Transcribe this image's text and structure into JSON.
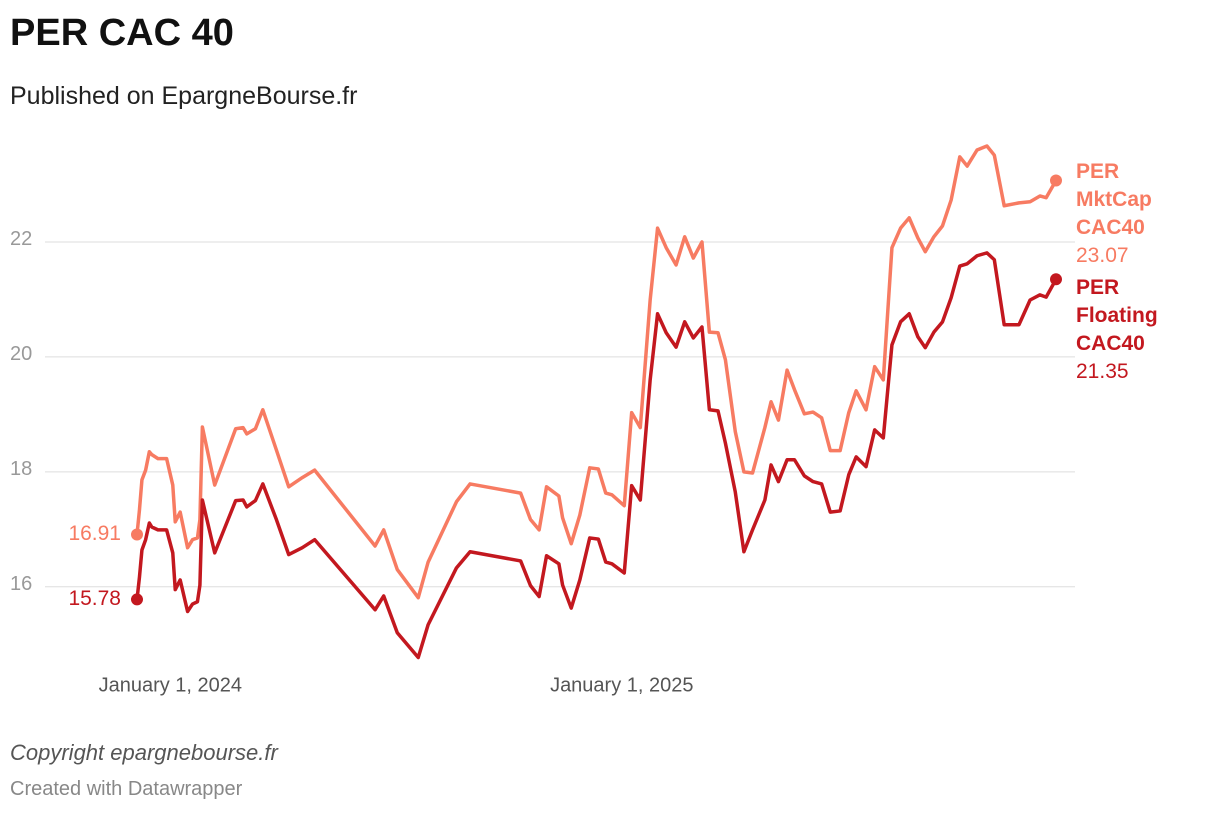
{
  "chart_data": {
    "type": "line",
    "title": "PER CAC 40",
    "subtitle": "Published on EpargneBourse.fr",
    "footer": "Copyright epargnebourse.fr",
    "credit": "Created with Datawrapper",
    "x": [
      "2023-12-05",
      "2023-12-07",
      "2023-12-09",
      "2023-12-12",
      "2023-12-15",
      "2023-12-17",
      "2023-12-22",
      "2023-12-29",
      "2024-01-03",
      "2024-01-05",
      "2024-01-09",
      "2024-01-15",
      "2024-01-19",
      "2024-01-23",
      "2024-01-25",
      "2024-01-27",
      "2024-02-06",
      "2024-02-23",
      "2024-02-29",
      "2024-03-03",
      "2024-03-10",
      "2024-03-16",
      "2024-03-27",
      "2024-04-06",
      "2024-04-17",
      "2024-04-27",
      "2024-06-15",
      "2024-06-22",
      "2024-07-03",
      "2024-07-20",
      "2024-07-28",
      "2024-08-20",
      "2024-08-31",
      "2024-10-11",
      "2024-10-19",
      "2024-10-26",
      "2024-11-01",
      "2024-11-11",
      "2024-11-14",
      "2024-11-21",
      "2024-11-28",
      "2024-12-06",
      "2024-12-13",
      "2024-12-19",
      "2024-12-24",
      "2025-01-03",
      "2025-01-09",
      "2025-01-16",
      "2025-01-24",
      "2025-01-30",
      "2025-02-06",
      "2025-02-14",
      "2025-02-21",
      "2025-02-28",
      "2025-03-07",
      "2025-03-13",
      "2025-03-20",
      "2025-03-26",
      "2025-04-03",
      "2025-04-10",
      "2025-04-17",
      "2025-04-27",
      "2025-05-02",
      "2025-05-08",
      "2025-05-15",
      "2025-05-21",
      "2025-05-29",
      "2025-06-05",
      "2025-06-12",
      "2025-06-19",
      "2025-06-27",
      "2025-07-04",
      "2025-07-10",
      "2025-07-18",
      "2025-07-25",
      "2025-08-01",
      "2025-08-08",
      "2025-08-15",
      "2025-08-22",
      "2025-08-29",
      "2025-09-04",
      "2025-09-11",
      "2025-09-18",
      "2025-09-25",
      "2025-10-02",
      "2025-10-08",
      "2025-10-16",
      "2025-10-24",
      "2025-10-30",
      "2025-11-07",
      "2025-11-19",
      "2025-11-28",
      "2025-12-06",
      "2025-12-11",
      "2025-12-19"
    ],
    "series": [
      {
        "name": "PER MktCap CAC40",
        "color": "#f77b62",
        "values": [
          16.91,
          17.34,
          17.86,
          18.03,
          18.35,
          18.3,
          18.23,
          18.23,
          17.77,
          17.13,
          17.3,
          16.68,
          16.82,
          16.85,
          17.17,
          18.78,
          17.77,
          18.75,
          18.77,
          18.66,
          18.75,
          19.08,
          18.38,
          17.74,
          17.9,
          18.03,
          16.71,
          16.99,
          16.3,
          15.81,
          16.43,
          17.48,
          17.79,
          17.63,
          17.17,
          16.99,
          17.74,
          17.58,
          17.2,
          16.75,
          17.25,
          18.07,
          18.05,
          17.63,
          17.6,
          17.41,
          19.03,
          18.77,
          20.99,
          22.24,
          21.9,
          21.6,
          22.09,
          21.72,
          22.0,
          20.43,
          20.42,
          19.95,
          18.7,
          18.0,
          17.98,
          18.77,
          19.22,
          18.9,
          19.77,
          19.43,
          19.01,
          19.04,
          18.94,
          18.37,
          18.37,
          19.03,
          19.41,
          19.08,
          19.83,
          19.6,
          21.9,
          22.24,
          22.42,
          22.07,
          21.83,
          22.09,
          22.28,
          22.73,
          23.48,
          23.32,
          23.6,
          23.67,
          23.51,
          22.63,
          22.68,
          22.7,
          22.8,
          22.77,
          23.07
        ]
      },
      {
        "name": "PER Floating CAC40",
        "color": "#c3181f",
        "values": [
          15.78,
          16.17,
          16.64,
          16.82,
          17.11,
          17.04,
          16.99,
          16.99,
          16.59,
          15.95,
          16.12,
          15.57,
          15.7,
          15.74,
          16.03,
          17.51,
          16.59,
          17.5,
          17.51,
          17.39,
          17.5,
          17.79,
          17.17,
          16.56,
          16.68,
          16.82,
          15.6,
          15.84,
          15.2,
          14.77,
          15.34,
          16.33,
          16.61,
          16.45,
          16.02,
          15.83,
          16.54,
          16.4,
          16.03,
          15.63,
          16.12,
          16.85,
          16.83,
          16.43,
          16.4,
          16.24,
          17.76,
          17.51,
          19.6,
          20.75,
          20.42,
          20.17,
          20.61,
          20.33,
          20.52,
          19.08,
          19.06,
          18.5,
          17.65,
          16.61,
          16.99,
          17.51,
          18.12,
          17.83,
          18.21,
          18.21,
          17.93,
          17.83,
          17.79,
          17.3,
          17.32,
          17.95,
          18.26,
          18.09,
          18.73,
          18.59,
          20.21,
          20.61,
          20.75,
          20.35,
          20.16,
          20.43,
          20.61,
          21.03,
          21.58,
          21.62,
          21.76,
          21.81,
          21.69,
          20.56,
          20.56,
          20.99,
          21.08,
          21.04,
          21.35
        ]
      }
    ],
    "xlim": [
      "2023-12-05",
      "2025-12-19"
    ],
    "xticks": [
      {
        "value": "2024-01-01",
        "label": "January 1, 2024"
      },
      {
        "value": "2025-01-01",
        "label": "January 1, 2025"
      }
    ],
    "ylim": [
      14.5,
      23.8
    ],
    "yticks": [
      16,
      18,
      20,
      22
    ],
    "grid": true
  }
}
